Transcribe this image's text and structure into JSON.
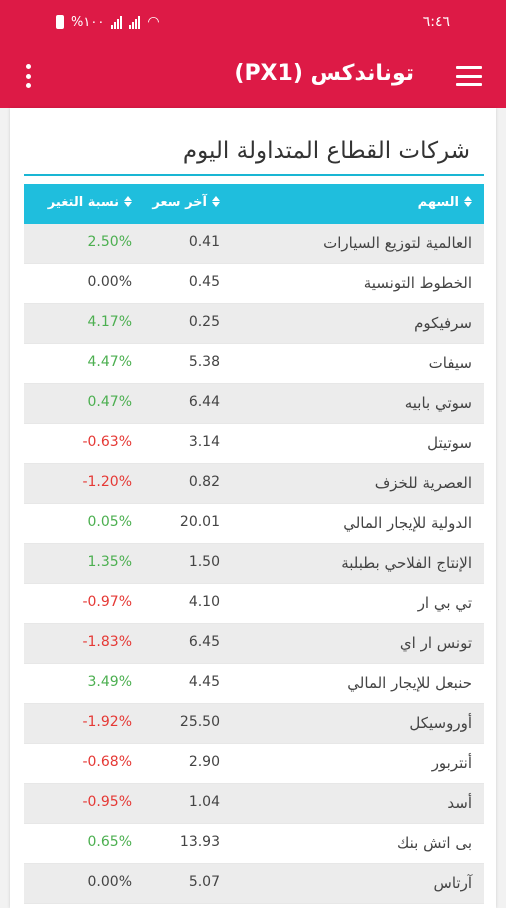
{
  "status_bar": {
    "time": "٦:٤٦",
    "battery_text": "%١٠٠",
    "colors": {
      "bar": "#dd1a46"
    }
  },
  "app_bar": {
    "title": "توناندكس (PX1)",
    "menu_icon": "hamburger-icon",
    "overflow_icon": "kebab-icon"
  },
  "section": {
    "title": "شركات القطاع المتداولة اليوم"
  },
  "table": {
    "headers": {
      "stock": "السهم",
      "price": "آخر سعر",
      "change": "نسبة التغير"
    },
    "accent": "#1fbedd",
    "rows": [
      {
        "stock": "العالمية لتوزيع السيارات",
        "price": "0.41",
        "change": "2.50%",
        "dir": "pos"
      },
      {
        "stock": "الخطوط التونسية",
        "price": "0.45",
        "change": "0.00%",
        "dir": "zero"
      },
      {
        "stock": "سرفيكوم",
        "price": "0.25",
        "change": "4.17%",
        "dir": "pos"
      },
      {
        "stock": "سيفات",
        "price": "5.38",
        "change": "4.47%",
        "dir": "pos"
      },
      {
        "stock": "سوتي بابيه",
        "price": "6.44",
        "change": "0.47%",
        "dir": "pos"
      },
      {
        "stock": "سوتيتل",
        "price": "3.14",
        "change": "-0.63%",
        "dir": "neg"
      },
      {
        "stock": "العصرية للخزف",
        "price": "0.82",
        "change": "-1.20%",
        "dir": "neg"
      },
      {
        "stock": "الدولية للإيجار المالي",
        "price": "20.01",
        "change": "0.05%",
        "dir": "pos"
      },
      {
        "stock": "الإنتاج الفلاحي بطبلبة",
        "price": "1.50",
        "change": "1.35%",
        "dir": "pos"
      },
      {
        "stock": "تي بي ار",
        "price": "4.10",
        "change": "-0.97%",
        "dir": "neg"
      },
      {
        "stock": "تونس ار اي",
        "price": "6.45",
        "change": "-1.83%",
        "dir": "neg"
      },
      {
        "stock": "حنبعل للإيجار المالي",
        "price": "4.45",
        "change": "3.49%",
        "dir": "pos"
      },
      {
        "stock": "أوروسيكل",
        "price": "25.50",
        "change": "-1.92%",
        "dir": "neg"
      },
      {
        "stock": "أنتربور",
        "price": "2.90",
        "change": "-0.68%",
        "dir": "neg"
      },
      {
        "stock": "أسد",
        "price": "1.04",
        "change": "-0.95%",
        "dir": "neg"
      },
      {
        "stock": "بى اتش بنك",
        "price": "13.93",
        "change": "0.65%",
        "dir": "pos"
      },
      {
        "stock": "آرتاس",
        "price": "5.07",
        "change": "0.00%",
        "dir": "zero"
      }
    ]
  }
}
